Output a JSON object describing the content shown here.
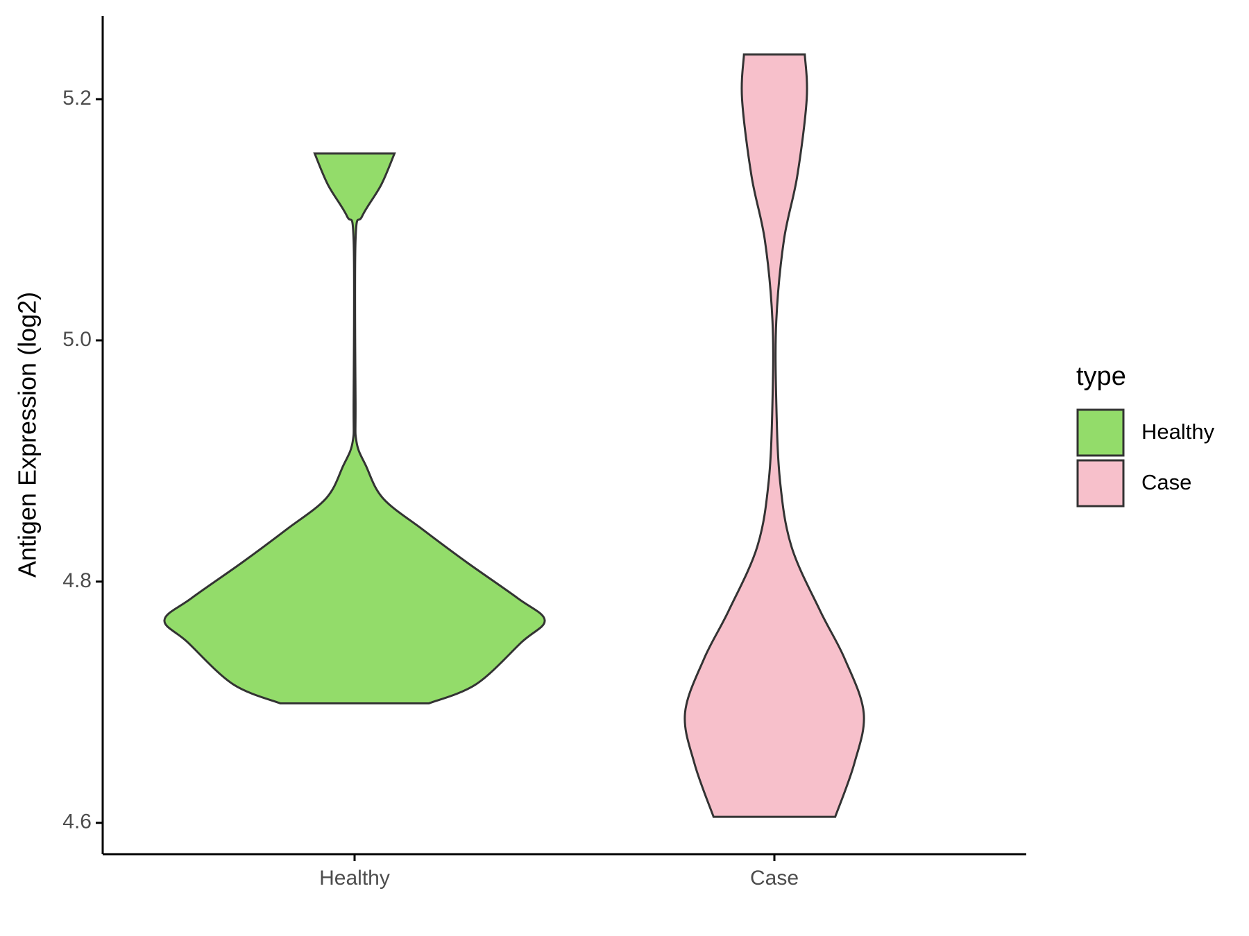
{
  "chart_data": {
    "type": "violin",
    "y_label": "Antigen Expression (log2)",
    "categories": [
      "Healthy",
      "Case"
    ],
    "legend_title": "type",
    "legend_position": "right",
    "ylim": [
      4.574,
      5.269
    ],
    "yticks": [
      {
        "value": 4.6,
        "label": "4.6"
      },
      {
        "value": 4.8,
        "label": "4.8"
      },
      {
        "value": 5.0,
        "label": "5.0"
      },
      {
        "value": 5.2,
        "label": "5.2"
      }
    ],
    "series": [
      {
        "name": "Healthy",
        "color": "#93dc6a",
        "y": [
          4.699,
          4.715,
          4.75,
          4.768,
          4.786,
          4.816,
          4.843,
          4.869,
          4.896,
          4.916,
          4.949,
          5.083,
          5.103,
          5.129,
          5.155
        ],
        "density": [
          0.39,
          0.64,
          0.88,
          1.0,
          0.86,
          0.59,
          0.36,
          0.15,
          0.06,
          0.01,
          0.005,
          0.005,
          0.04,
          0.14,
          0.21
        ]
      },
      {
        "name": "Case",
        "color": "#f7c0cb",
        "y": [
          4.605,
          4.649,
          4.691,
          4.736,
          4.776,
          4.829,
          4.883,
          4.949,
          5.016,
          5.083,
          5.136,
          5.2,
          5.237
        ],
        "density": [
          0.32,
          0.42,
          0.47,
          0.37,
          0.24,
          0.09,
          0.03,
          0.01,
          0.01,
          0.05,
          0.12,
          0.17,
          0.16
        ]
      }
    ]
  }
}
